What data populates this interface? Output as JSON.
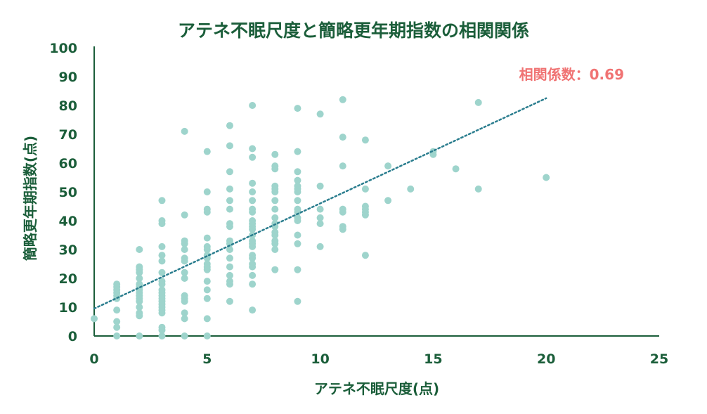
{
  "chart_data": {
    "type": "scatter",
    "title": "アテネ不眠尺度と簡略更年期指数の相関関係",
    "xlabel": "アテネ不眠尺度(点)",
    "ylabel": "簡略更年期指数(点)",
    "xlim": [
      0,
      25
    ],
    "ylim": [
      0,
      100
    ],
    "x_ticks": [
      "0",
      "5",
      "10",
      "15",
      "20",
      "25"
    ],
    "y_ticks": [
      "0",
      "10",
      "20",
      "30",
      "40",
      "50",
      "60",
      "70",
      "80",
      "90",
      "100"
    ],
    "grid": false,
    "legend": "none",
    "annotation": "相関係数：0.69",
    "marker_color": "#9ed4cc",
    "trendline": {
      "style": "dotted",
      "color": "#2a7d8e",
      "x": [
        0,
        20
      ],
      "y": [
        9.5,
        82.5
      ]
    },
    "series": [
      {
        "points": [
          [
            0,
            6
          ],
          [
            1,
            0
          ],
          [
            1,
            3
          ],
          [
            1,
            5
          ],
          [
            1,
            9
          ],
          [
            1,
            13
          ],
          [
            1,
            14
          ],
          [
            1,
            15
          ],
          [
            1,
            16
          ],
          [
            1,
            17
          ],
          [
            1,
            18
          ],
          [
            2,
            0
          ],
          [
            2,
            7
          ],
          [
            2,
            8
          ],
          [
            2,
            10
          ],
          [
            2,
            12
          ],
          [
            2,
            13
          ],
          [
            2,
            14
          ],
          [
            2,
            15
          ],
          [
            2,
            16
          ],
          [
            2,
            17
          ],
          [
            2,
            18
          ],
          [
            2,
            20
          ],
          [
            2,
            22
          ],
          [
            2,
            23
          ],
          [
            2,
            24
          ],
          [
            2,
            30
          ],
          [
            3,
            0
          ],
          [
            3,
            2
          ],
          [
            3,
            3
          ],
          [
            3,
            8
          ],
          [
            3,
            9
          ],
          [
            3,
            10
          ],
          [
            3,
            11
          ],
          [
            3,
            12
          ],
          [
            3,
            13
          ],
          [
            3,
            14
          ],
          [
            3,
            15
          ],
          [
            3,
            16
          ],
          [
            3,
            18
          ],
          [
            3,
            19
          ],
          [
            3,
            22
          ],
          [
            3,
            26
          ],
          [
            3,
            28
          ],
          [
            3,
            31
          ],
          [
            3,
            39
          ],
          [
            3,
            40
          ],
          [
            3,
            47
          ],
          [
            4,
            0
          ],
          [
            4,
            6
          ],
          [
            4,
            8
          ],
          [
            4,
            12
          ],
          [
            4,
            13
          ],
          [
            4,
            14
          ],
          [
            4,
            20
          ],
          [
            4,
            22
          ],
          [
            4,
            26
          ],
          [
            4,
            27
          ],
          [
            4,
            30
          ],
          [
            4,
            32
          ],
          [
            4,
            33
          ],
          [
            4,
            42
          ],
          [
            4,
            71
          ],
          [
            5,
            0
          ],
          [
            5,
            6
          ],
          [
            5,
            13
          ],
          [
            5,
            16
          ],
          [
            5,
            19
          ],
          [
            5,
            23
          ],
          [
            5,
            24
          ],
          [
            5,
            25
          ],
          [
            5,
            27
          ],
          [
            5,
            28
          ],
          [
            5,
            30
          ],
          [
            5,
            31
          ],
          [
            5,
            34
          ],
          [
            5,
            43
          ],
          [
            5,
            44
          ],
          [
            5,
            50
          ],
          [
            5,
            64
          ],
          [
            6,
            12
          ],
          [
            6,
            18
          ],
          [
            6,
            19
          ],
          [
            6,
            21
          ],
          [
            6,
            24
          ],
          [
            6,
            27
          ],
          [
            6,
            30
          ],
          [
            6,
            32
          ],
          [
            6,
            33
          ],
          [
            6,
            38
          ],
          [
            6,
            39
          ],
          [
            6,
            44
          ],
          [
            6,
            47
          ],
          [
            6,
            51
          ],
          [
            6,
            57
          ],
          [
            6,
            66
          ],
          [
            6,
            73
          ],
          [
            7,
            9
          ],
          [
            7,
            18
          ],
          [
            7,
            21
          ],
          [
            7,
            24
          ],
          [
            7,
            25
          ],
          [
            7,
            27
          ],
          [
            7,
            28
          ],
          [
            7,
            31
          ],
          [
            7,
            32
          ],
          [
            7,
            33
          ],
          [
            7,
            35
          ],
          [
            7,
            37
          ],
          [
            7,
            38
          ],
          [
            7,
            39
          ],
          [
            7,
            40
          ],
          [
            7,
            43
          ],
          [
            7,
            44
          ],
          [
            7,
            47
          ],
          [
            7,
            50
          ],
          [
            7,
            53
          ],
          [
            7,
            62
          ],
          [
            7,
            65
          ],
          [
            7,
            80
          ],
          [
            8,
            23
          ],
          [
            8,
            30
          ],
          [
            8,
            32
          ],
          [
            8,
            33
          ],
          [
            8,
            35
          ],
          [
            8,
            36
          ],
          [
            8,
            38
          ],
          [
            8,
            39
          ],
          [
            8,
            41
          ],
          [
            8,
            44
          ],
          [
            8,
            47
          ],
          [
            8,
            50
          ],
          [
            8,
            51
          ],
          [
            8,
            52
          ],
          [
            8,
            58
          ],
          [
            8,
            59
          ],
          [
            8,
            63
          ],
          [
            9,
            12
          ],
          [
            9,
            23
          ],
          [
            9,
            32
          ],
          [
            9,
            35
          ],
          [
            9,
            40
          ],
          [
            9,
            41
          ],
          [
            9,
            43
          ],
          [
            9,
            44
          ],
          [
            9,
            47
          ],
          [
            9,
            50
          ],
          [
            9,
            51
          ],
          [
            9,
            52
          ],
          [
            9,
            54
          ],
          [
            9,
            57
          ],
          [
            9,
            64
          ],
          [
            9,
            79
          ],
          [
            10,
            31
          ],
          [
            10,
            39
          ],
          [
            10,
            41
          ],
          [
            10,
            44
          ],
          [
            10,
            52
          ],
          [
            10,
            77
          ],
          [
            11,
            37
          ],
          [
            11,
            38
          ],
          [
            11,
            43
          ],
          [
            11,
            44
          ],
          [
            11,
            59
          ],
          [
            11,
            69
          ],
          [
            11,
            82
          ],
          [
            12,
            28
          ],
          [
            12,
            42
          ],
          [
            12,
            43
          ],
          [
            12,
            44
          ],
          [
            12,
            45
          ],
          [
            12,
            51
          ],
          [
            12,
            68
          ],
          [
            13,
            47
          ],
          [
            13,
            59
          ],
          [
            14,
            51
          ],
          [
            15,
            63
          ],
          [
            15,
            64
          ],
          [
            16,
            58
          ],
          [
            17,
            51
          ],
          [
            17,
            81
          ],
          [
            20,
            55
          ]
        ]
      }
    ]
  }
}
